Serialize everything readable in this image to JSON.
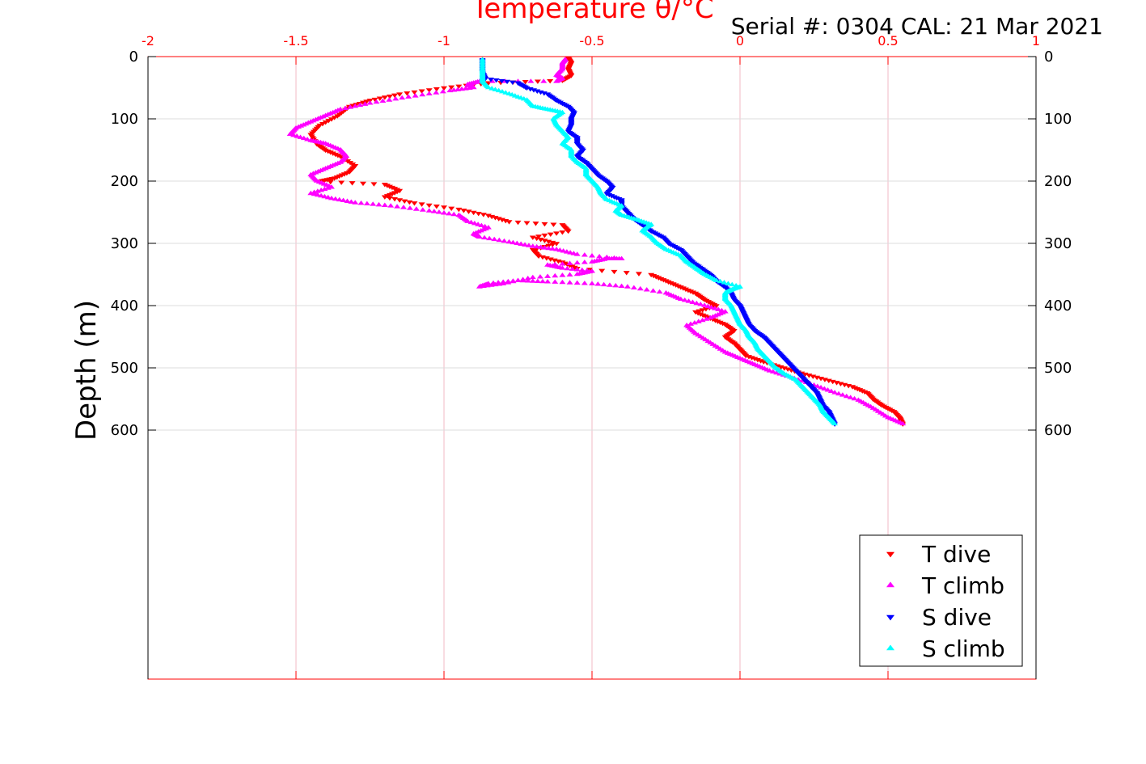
{
  "serial_label": "Serial #: 0304  CAL: 21 Mar 2021",
  "chart_data": {
    "type": "scatter",
    "title": "",
    "xlabel": "Temperature θ/°C",
    "ylabel": "Depth (m)",
    "xlim": [
      -2,
      1
    ],
    "ylim": [
      0,
      1000
    ],
    "y_reversed": true,
    "x_axis_position": "top",
    "x_ticks": [
      "-2",
      "-1.5",
      "-1",
      "-0.5",
      "0",
      "0.5",
      "1"
    ],
    "y_ticks": [
      "0",
      "100",
      "200",
      "300",
      "400",
      "500",
      "600"
    ],
    "y_ticks_mirrored_right": true,
    "grid": true,
    "legend_position": "bottom-right",
    "colors": {
      "axis": "#ff0000",
      "grid": "#f2b8c6",
      "t_dive": "#ff0000",
      "t_climb": "#ff00ff",
      "s_dive": "#0000ff",
      "s_climb": "#00ffff"
    },
    "series": [
      {
        "name": "T dive",
        "marker": "triangle-down",
        "color": "#ff0000",
        "points": [
          [
            -0.58,
            2
          ],
          [
            -0.57,
            10
          ],
          [
            -0.58,
            20
          ],
          [
            -0.57,
            30
          ],
          [
            -0.6,
            38
          ],
          [
            -0.85,
            42
          ],
          [
            -1.0,
            50
          ],
          [
            -1.15,
            60
          ],
          [
            -1.25,
            70
          ],
          [
            -1.32,
            80
          ],
          [
            -1.36,
            95
          ],
          [
            -1.42,
            110
          ],
          [
            -1.45,
            125
          ],
          [
            -1.43,
            140
          ],
          [
            -1.4,
            150
          ],
          [
            -1.35,
            160
          ],
          [
            -1.3,
            175
          ],
          [
            -1.32,
            185
          ],
          [
            -1.37,
            195
          ],
          [
            -1.42,
            200
          ],
          [
            -1.2,
            205
          ],
          [
            -1.15,
            215
          ],
          [
            -1.2,
            225
          ],
          [
            -1.1,
            235
          ],
          [
            -0.95,
            245
          ],
          [
            -0.85,
            255
          ],
          [
            -0.78,
            265
          ],
          [
            -0.6,
            270
          ],
          [
            -0.58,
            280
          ],
          [
            -0.7,
            290
          ],
          [
            -0.62,
            300
          ],
          [
            -0.7,
            310
          ],
          [
            -0.68,
            320
          ],
          [
            -0.6,
            330
          ],
          [
            -0.55,
            340
          ],
          [
            -0.3,
            350
          ],
          [
            -0.25,
            360
          ],
          [
            -0.2,
            370
          ],
          [
            -0.15,
            380
          ],
          [
            -0.12,
            390
          ],
          [
            -0.08,
            400
          ],
          [
            -0.15,
            410
          ],
          [
            -0.1,
            420
          ],
          [
            -0.05,
            430
          ],
          [
            -0.02,
            440
          ],
          [
            -0.05,
            450
          ],
          [
            -0.02,
            460
          ],
          [
            0.0,
            470
          ],
          [
            0.02,
            480
          ],
          [
            0.08,
            490
          ],
          [
            0.15,
            500
          ],
          [
            0.22,
            510
          ],
          [
            0.3,
            520
          ],
          [
            0.38,
            530
          ],
          [
            0.43,
            540
          ],
          [
            0.45,
            550
          ],
          [
            0.48,
            560
          ],
          [
            0.52,
            570
          ],
          [
            0.54,
            580
          ],
          [
            0.55,
            590
          ]
        ]
      },
      {
        "name": "T climb",
        "marker": "triangle-up",
        "color": "#ff00ff",
        "points": [
          [
            0.55,
            590
          ],
          [
            0.5,
            580
          ],
          [
            0.45,
            565
          ],
          [
            0.4,
            552
          ],
          [
            0.32,
            540
          ],
          [
            0.25,
            528
          ],
          [
            0.17,
            515
          ],
          [
            0.1,
            505
          ],
          [
            0.05,
            495
          ],
          [
            0.0,
            485
          ],
          [
            -0.05,
            475
          ],
          [
            -0.1,
            460
          ],
          [
            -0.15,
            445
          ],
          [
            -0.18,
            432
          ],
          [
            -0.1,
            420
          ],
          [
            -0.05,
            410
          ],
          [
            -0.12,
            400
          ],
          [
            -0.2,
            390
          ],
          [
            -0.25,
            380
          ],
          [
            -0.38,
            370
          ],
          [
            -0.5,
            365
          ],
          [
            -0.65,
            362
          ],
          [
            -0.75,
            360
          ],
          [
            -0.85,
            365
          ],
          [
            -0.88,
            370
          ],
          [
            -0.8,
            365
          ],
          [
            -0.7,
            355
          ],
          [
            -0.55,
            350
          ],
          [
            -0.5,
            345
          ],
          [
            -0.6,
            340
          ],
          [
            -0.65,
            335
          ],
          [
            -0.5,
            330
          ],
          [
            -0.45,
            325
          ],
          [
            -0.4,
            325
          ],
          [
            -0.55,
            318
          ],
          [
            -0.62,
            310
          ],
          [
            -0.7,
            305
          ],
          [
            -0.78,
            298
          ],
          [
            -0.88,
            290
          ],
          [
            -0.9,
            285
          ],
          [
            -0.85,
            275
          ],
          [
            -0.92,
            265
          ],
          [
            -0.95,
            255
          ],
          [
            -1.05,
            248
          ],
          [
            -1.18,
            240
          ],
          [
            -1.3,
            235
          ],
          [
            -1.38,
            228
          ],
          [
            -1.45,
            220
          ],
          [
            -1.38,
            210
          ],
          [
            -1.43,
            200
          ],
          [
            -1.45,
            190
          ],
          [
            -1.4,
            180
          ],
          [
            -1.35,
            170
          ],
          [
            -1.33,
            160
          ],
          [
            -1.35,
            150
          ],
          [
            -1.4,
            140
          ],
          [
            -1.45,
            135
          ],
          [
            -1.52,
            125
          ],
          [
            -1.5,
            115
          ],
          [
            -1.45,
            105
          ],
          [
            -1.4,
            95
          ],
          [
            -1.35,
            85
          ],
          [
            -1.25,
            75
          ],
          [
            -1.12,
            65
          ],
          [
            -0.98,
            55
          ],
          [
            -0.9,
            50
          ],
          [
            -0.92,
            45
          ],
          [
            -0.88,
            40
          ],
          [
            -0.62,
            40
          ],
          [
            -0.6,
            35
          ],
          [
            -0.62,
            30
          ],
          [
            -0.6,
            20
          ],
          [
            -0.6,
            10
          ],
          [
            -0.59,
            5
          ]
        ]
      },
      {
        "name": "S dive",
        "marker": "triangle-down",
        "color": "#0000ff",
        "points": [
          [
            -0.87,
            5
          ],
          [
            -0.87,
            15
          ],
          [
            -0.87,
            25
          ],
          [
            -0.86,
            35
          ],
          [
            -0.75,
            42
          ],
          [
            -0.72,
            50
          ],
          [
            -0.65,
            60
          ],
          [
            -0.62,
            70
          ],
          [
            -0.58,
            80
          ],
          [
            -0.56,
            90
          ],
          [
            -0.57,
            100
          ],
          [
            -0.57,
            110
          ],
          [
            -0.58,
            120
          ],
          [
            -0.55,
            130
          ],
          [
            -0.55,
            140
          ],
          [
            -0.53,
            150
          ],
          [
            -0.55,
            160
          ],
          [
            -0.52,
            170
          ],
          [
            -0.5,
            180
          ],
          [
            -0.48,
            190
          ],
          [
            -0.45,
            200
          ],
          [
            -0.43,
            210
          ],
          [
            -0.45,
            220
          ],
          [
            -0.4,
            230
          ],
          [
            -0.4,
            240
          ],
          [
            -0.38,
            250
          ],
          [
            -0.36,
            260
          ],
          [
            -0.33,
            270
          ],
          [
            -0.3,
            280
          ],
          [
            -0.26,
            290
          ],
          [
            -0.24,
            300
          ],
          [
            -0.2,
            310
          ],
          [
            -0.18,
            320
          ],
          [
            -0.16,
            330
          ],
          [
            -0.13,
            340
          ],
          [
            -0.1,
            350
          ],
          [
            -0.08,
            360
          ],
          [
            -0.05,
            370
          ],
          [
            -0.03,
            380
          ],
          [
            -0.02,
            390
          ],
          [
            0.0,
            400
          ],
          [
            0.01,
            410
          ],
          [
            0.02,
            420
          ],
          [
            0.03,
            430
          ],
          [
            0.05,
            440
          ],
          [
            0.08,
            450
          ],
          [
            0.1,
            460
          ],
          [
            0.12,
            470
          ],
          [
            0.14,
            480
          ],
          [
            0.16,
            490
          ],
          [
            0.18,
            500
          ],
          [
            0.2,
            510
          ],
          [
            0.22,
            520
          ],
          [
            0.24,
            530
          ],
          [
            0.26,
            540
          ],
          [
            0.27,
            550
          ],
          [
            0.28,
            560
          ],
          [
            0.3,
            570
          ],
          [
            0.31,
            580
          ],
          [
            0.32,
            590
          ]
        ]
      },
      {
        "name": "S climb",
        "marker": "triangle-up",
        "color": "#00ffff",
        "points": [
          [
            0.32,
            590
          ],
          [
            0.3,
            580
          ],
          [
            0.28,
            570
          ],
          [
            0.27,
            560
          ],
          [
            0.25,
            550
          ],
          [
            0.23,
            540
          ],
          [
            0.21,
            530
          ],
          [
            0.19,
            520
          ],
          [
            0.15,
            510
          ],
          [
            0.12,
            500
          ],
          [
            0.1,
            490
          ],
          [
            0.08,
            480
          ],
          [
            0.06,
            470
          ],
          [
            0.05,
            460
          ],
          [
            0.03,
            450
          ],
          [
            0.02,
            440
          ],
          [
            0.0,
            430
          ],
          [
            -0.01,
            420
          ],
          [
            -0.02,
            410
          ],
          [
            -0.03,
            400
          ],
          [
            -0.05,
            390
          ],
          [
            -0.05,
            380
          ],
          [
            -0.03,
            375
          ],
          [
            0.0,
            370
          ],
          [
            -0.08,
            360
          ],
          [
            -0.12,
            350
          ],
          [
            -0.15,
            340
          ],
          [
            -0.18,
            330
          ],
          [
            -0.2,
            320
          ],
          [
            -0.25,
            310
          ],
          [
            -0.28,
            300
          ],
          [
            -0.3,
            290
          ],
          [
            -0.33,
            280
          ],
          [
            -0.3,
            270
          ],
          [
            -0.35,
            262
          ],
          [
            -0.4,
            255
          ],
          [
            -0.42,
            248
          ],
          [
            -0.4,
            240
          ],
          [
            -0.45,
            230
          ],
          [
            -0.47,
            220
          ],
          [
            -0.48,
            210
          ],
          [
            -0.5,
            200
          ],
          [
            -0.52,
            190
          ],
          [
            -0.52,
            180
          ],
          [
            -0.55,
            170
          ],
          [
            -0.57,
            160
          ],
          [
            -0.57,
            150
          ],
          [
            -0.6,
            140
          ],
          [
            -0.58,
            130
          ],
          [
            -0.6,
            120
          ],
          [
            -0.62,
            110
          ],
          [
            -0.63,
            100
          ],
          [
            -0.6,
            90
          ],
          [
            -0.65,
            85
          ],
          [
            -0.7,
            80
          ],
          [
            -0.72,
            70
          ],
          [
            -0.78,
            60
          ],
          [
            -0.85,
            50
          ],
          [
            -0.87,
            40
          ],
          [
            -0.87,
            30
          ],
          [
            -0.87,
            20
          ],
          [
            -0.87,
            5
          ]
        ]
      }
    ]
  }
}
